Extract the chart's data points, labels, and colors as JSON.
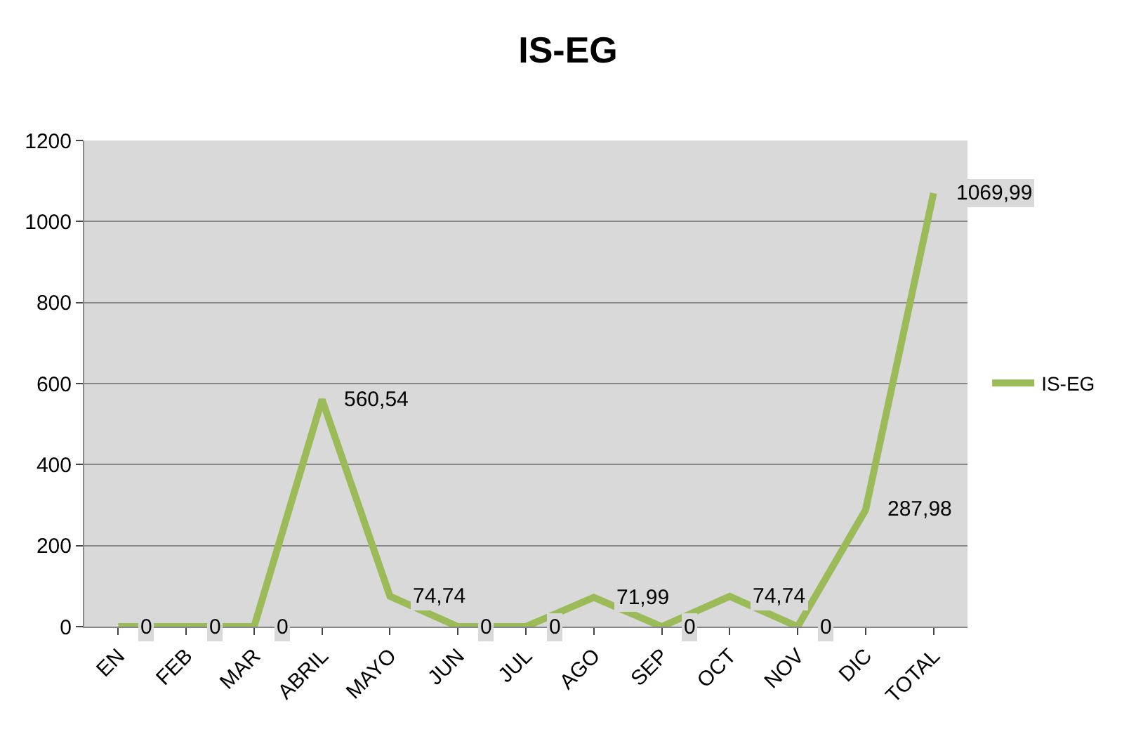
{
  "chart_data": {
    "type": "line",
    "title": "IS-EG",
    "categories": [
      "EN",
      "FEB",
      "MAR",
      "ABRIL",
      "MAYO",
      "JUN",
      "JUL",
      "AGO",
      "SEP",
      "OCT",
      "NOV",
      "DIC",
      "TOTAL"
    ],
    "series": [
      {
        "name": "IS-EG",
        "color": "#9bbb59",
        "values": [
          0,
          0,
          0,
          560.54,
          74.74,
          0,
          0,
          71.99,
          0,
          74.74,
          0,
          287.98,
          1069.99
        ],
        "value_labels": [
          "0",
          "0",
          "0",
          "560,54",
          "74,74",
          "0",
          "0",
          "71,99",
          "0",
          "74,74",
          "0",
          "287,98",
          "1069,99"
        ]
      }
    ],
    "ylim": [
      0,
      1200
    ],
    "yticks": [
      0,
      200,
      400,
      600,
      800,
      1000,
      1200
    ],
    "grid": "y",
    "legend": "right",
    "marker": "none",
    "line_style": "solid"
  }
}
